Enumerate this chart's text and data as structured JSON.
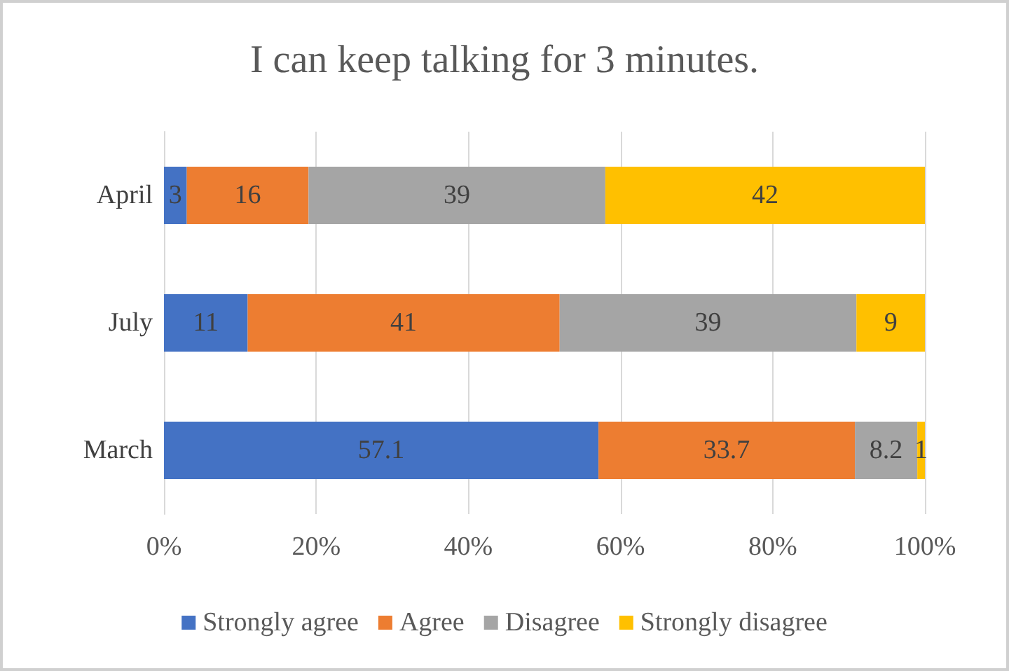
{
  "chart_data": {
    "type": "bar",
    "orientation": "horizontal",
    "stacked": true,
    "title": "I can keep talking for 3 minutes.",
    "categories": [
      "April",
      "July",
      "March"
    ],
    "series": [
      {
        "name": "Strongly agree",
        "color": "#4472c4",
        "values": [
          3,
          11,
          57.1
        ]
      },
      {
        "name": "Agree",
        "color": "#ed7d31",
        "values": [
          16,
          41,
          33.7
        ]
      },
      {
        "name": "Disagree",
        "color": "#a5a5a5",
        "values": [
          39,
          39,
          8.2
        ]
      },
      {
        "name": "Strongly disagree",
        "color": "#ffc000",
        "values": [
          42,
          9,
          1
        ]
      }
    ],
    "xlim": [
      0,
      100
    ],
    "xticks": [
      {
        "value": 0,
        "label": "0%"
      },
      {
        "value": 20,
        "label": "20%"
      },
      {
        "value": 40,
        "label": "40%"
      },
      {
        "value": 60,
        "label": "60%"
      },
      {
        "value": 80,
        "label": "80%"
      },
      {
        "value": 100,
        "label": "100%"
      }
    ],
    "grid": "x",
    "legend": "bottom",
    "data_labels": true
  }
}
